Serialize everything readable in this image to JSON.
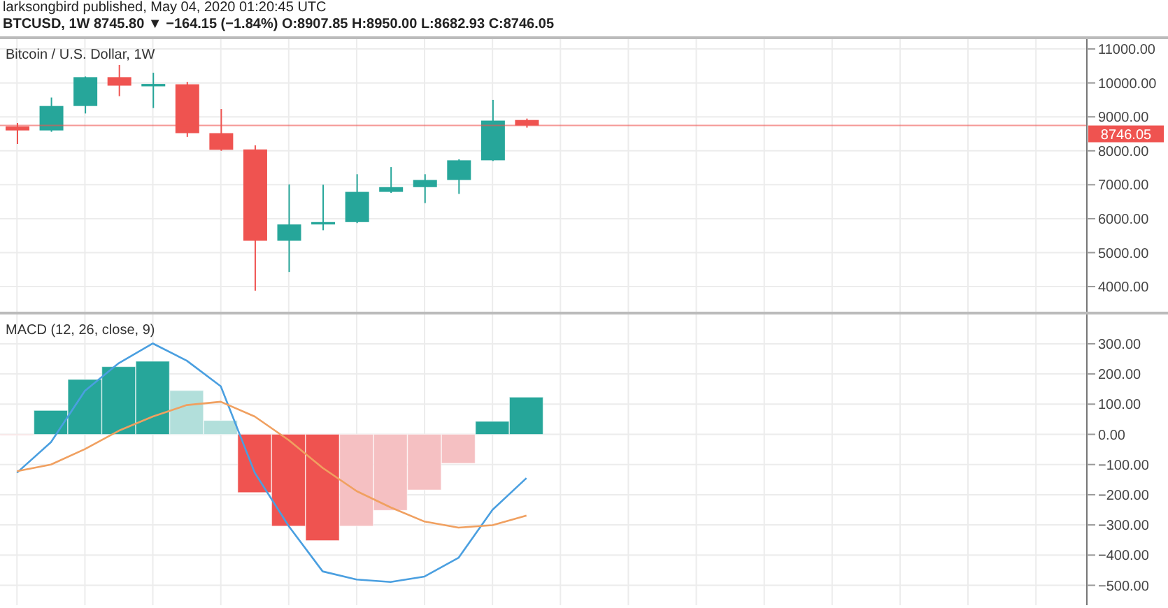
{
  "chart_data": [
    {
      "type": "candlestick",
      "title": "Bitcoin / U.S. Dollar, 1W",
      "annotations": [
        "larksongbird published, May 04, 2020 01:20:45 UTC",
        "BTCUSD, 1W 8745.80 ▼ −164.15 (−1.84%) O:8907.85 H:8950.00 L:8682.93 C:8746.05"
      ],
      "categories": [
        null,
        null,
        null,
        null,
        null,
        null,
        null,
        null,
        null,
        null,
        null,
        null,
        null,
        null,
        null,
        null,
        null,
        null,
        null,
        null,
        null,
        null,
        null,
        null,
        null,
        null,
        null,
        null,
        null,
        null,
        null,
        null
      ],
      "ohlc": [
        [
          8720,
          8820,
          8200,
          8600
        ],
        [
          8600,
          9570,
          8560,
          9320
        ],
        [
          9320,
          10190,
          9100,
          10170
        ],
        [
          10170,
          10530,
          9610,
          9920
        ],
        [
          9900,
          10300,
          9260,
          9970
        ],
        [
          9960,
          10030,
          8410,
          8520
        ],
        [
          8520,
          9230,
          8000,
          8030
        ],
        [
          8040,
          8160,
          3880,
          5350
        ],
        [
          5350,
          7010,
          4430,
          5830
        ],
        [
          5830,
          7000,
          5660,
          5900
        ],
        [
          5900,
          7310,
          5870,
          6790
        ],
        [
          6790,
          7520,
          6760,
          6930
        ],
        [
          6930,
          7310,
          6460,
          7140
        ],
        [
          7140,
          7750,
          6730,
          7720
        ],
        [
          7720,
          9500,
          7700,
          8890
        ],
        [
          8907.85,
          8950,
          8682.93,
          8746.05
        ],
        null,
        null,
        null,
        null,
        null,
        null,
        null,
        null,
        null,
        null,
        null,
        null,
        null,
        null,
        null,
        null
      ],
      "colors": [
        "#ef5350",
        "#26a69a",
        "#26a69a",
        "#ef5350",
        "#26a69a",
        "#ef5350",
        "#ef5350",
        "#ef5350",
        "#26a69a",
        "#26a69a",
        "#26a69a",
        "#26a69a",
        "#26a69a",
        "#26a69a",
        "#26a69a",
        "#ef5350",
        null,
        null,
        null,
        null,
        null,
        null,
        null,
        null,
        null,
        null,
        null,
        null,
        null,
        null,
        null,
        null
      ],
      "ylim": [
        3260,
        11290
      ],
      "yticks": [
        {
          "value": 4000,
          "label": "4000.00"
        },
        {
          "value": 5000,
          "label": "5000.00"
        },
        {
          "value": 6000,
          "label": "6000.00"
        },
        {
          "value": 7000,
          "label": "7000.00"
        },
        {
          "value": 8000,
          "label": "8000.00"
        },
        {
          "value": 9000,
          "label": "9000.00"
        },
        {
          "value": 10000,
          "label": "10000.00"
        },
        {
          "value": 11000,
          "label": "11000.00"
        }
      ],
      "ref_lines": [
        {
          "axis": "y",
          "value": 8746.05,
          "label": "8746.05",
          "color": "#ef5350"
        }
      ],
      "grid": true,
      "tick_labels": "y"
    },
    {
      "type": "bar",
      "title": "MACD (12, 26, close, 9)",
      "categories": [
        null,
        null,
        null,
        null,
        null,
        null,
        null,
        null,
        null,
        null,
        null,
        null,
        null,
        null,
        null,
        null,
        null,
        null,
        null,
        null,
        null,
        null,
        null,
        null,
        null,
        null,
        null,
        null,
        null,
        null,
        null,
        null
      ],
      "series": [
        {
          "type": "bar",
          "values": [
            -3,
            79,
            182,
            224,
            242,
            145,
            46,
            -193,
            -304,
            -352,
            -304,
            -252,
            -184,
            -96,
            43,
            123,
            null,
            null,
            null,
            null,
            null,
            null,
            null,
            null,
            null,
            null,
            null,
            null,
            null,
            null,
            null,
            null
          ],
          "colors": [
            "#f5c0c2",
            "#26a69a",
            "#26a69a",
            "#26a69a",
            "#26a69a",
            "#b2dfdb",
            "#b2dfdb",
            "#ef5350",
            "#ef5350",
            "#ef5350",
            "#f5c0c2",
            "#f5c0c2",
            "#f5c0c2",
            "#f5c0c2",
            "#26a69a",
            "#26a69a",
            null,
            null,
            null,
            null,
            null,
            null,
            null,
            null,
            null,
            null,
            null,
            null,
            null,
            null,
            null,
            null
          ]
        },
        {
          "type": "line",
          "color": "#4a9fe0",
          "values": [
            -127,
            -26,
            144,
            236,
            301,
            244,
            159,
            -127,
            -304,
            -454,
            -481,
            -489,
            -471,
            -409,
            -250,
            -145,
            null,
            null,
            null,
            null,
            null,
            null,
            null,
            null,
            null,
            null,
            null,
            null,
            null,
            null,
            null,
            null
          ]
        },
        {
          "type": "line",
          "color": "#f0a060",
          "values": [
            -122,
            -100,
            -49,
            12,
            59,
            97,
            108,
            59,
            -19,
            -111,
            -188,
            -242,
            -289,
            -309,
            -301,
            -269,
            null,
            null,
            null,
            null,
            null,
            null,
            null,
            null,
            null,
            null,
            null,
            null,
            null,
            null,
            null,
            null
          ]
        }
      ],
      "ylim": [
        -566,
        397
      ],
      "yticks": [
        {
          "value": -500,
          "label": "−500.00"
        },
        {
          "value": -400,
          "label": "−400.00"
        },
        {
          "value": -300,
          "label": "−300.00"
        },
        {
          "value": -200,
          "label": "−200.00"
        },
        {
          "value": -100,
          "label": "−100.00"
        },
        {
          "value": 0,
          "label": "0.00"
        },
        {
          "value": 100,
          "label": "100.00"
        },
        {
          "value": 200,
          "label": "200.00"
        },
        {
          "value": 300,
          "label": "300.00"
        }
      ],
      "grid": true,
      "marker": "none",
      "tick_labels": "y"
    }
  ]
}
